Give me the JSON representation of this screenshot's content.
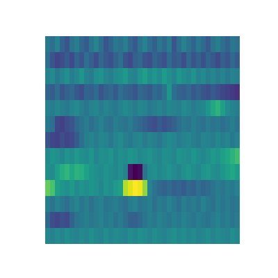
{
  "chart_data": {
    "type": "heatmap",
    "color": "viridis",
    "tick_labels": false,
    "cells": [
      [
        0.42,
        0.38,
        0.45,
        0.35,
        0.3,
        0.4,
        0.44,
        0.36,
        0.32,
        0.41,
        0.46,
        0.38,
        0.3,
        0.35,
        0.42,
        0.39,
        0.44,
        0.36,
        0.31,
        0.4,
        0.45,
        0.38,
        0.33,
        0.41,
        0.36,
        0.43,
        0.3,
        0.38,
        0.45,
        0.4,
        0.35,
        0.42,
        0.37,
        0.31,
        0.4,
        0.44,
        0.38,
        0.34,
        0.41,
        0.39
      ],
      [
        0.38,
        0.3,
        0.25,
        0.28,
        0.32,
        0.27,
        0.35,
        0.3,
        0.38,
        0.33,
        0.28,
        0.36,
        0.31,
        0.29,
        0.34,
        0.38,
        0.3,
        0.27,
        0.33,
        0.36,
        0.3,
        0.28,
        0.35,
        0.32,
        0.29,
        0.37,
        0.31,
        0.33,
        0.28,
        0.36,
        0.3,
        0.34,
        0.29,
        0.35,
        0.31,
        0.27,
        0.33,
        0.3,
        0.36,
        0.32
      ],
      [
        0.45,
        0.48,
        0.42,
        0.46,
        0.5,
        0.44,
        0.47,
        0.52,
        0.45,
        0.43,
        0.49,
        0.51,
        0.46,
        0.44,
        0.48,
        0.5,
        0.53,
        0.47,
        0.45,
        0.51,
        0.55,
        0.49,
        0.52,
        0.48,
        0.54,
        0.5,
        0.46,
        0.52,
        0.49,
        0.47,
        0.51,
        0.45,
        0.48,
        0.44,
        0.47,
        0.43,
        0.46,
        0.42,
        0.45,
        0.44
      ],
      [
        0.35,
        0.32,
        0.38,
        0.3,
        0.34,
        0.36,
        0.31,
        0.28,
        0.35,
        0.33,
        0.37,
        0.3,
        0.34,
        0.36,
        0.32,
        0.38,
        0.35,
        0.33,
        0.3,
        0.36,
        0.34,
        0.31,
        0.37,
        0.35,
        0.4,
        0.52,
        0.38,
        0.35,
        0.33,
        0.36,
        0.31,
        0.34,
        0.3,
        0.28,
        0.32,
        0.29,
        0.26,
        0.24,
        0.22,
        0.2
      ],
      [
        0.45,
        0.43,
        0.47,
        0.44,
        0.42,
        0.46,
        0.48,
        0.44,
        0.41,
        0.45,
        0.47,
        0.43,
        0.46,
        0.44,
        0.42,
        0.45,
        0.48,
        0.46,
        0.43,
        0.47,
        0.45,
        0.42,
        0.44,
        0.46,
        0.43,
        0.47,
        0.45,
        0.44,
        0.48,
        0.46,
        0.43,
        0.45,
        0.47,
        0.52,
        0.58,
        0.62,
        0.55,
        0.48,
        0.45,
        0.44
      ],
      [
        0.42,
        0.38,
        0.26,
        0.24,
        0.28,
        0.3,
        0.36,
        0.4,
        0.43,
        0.38,
        0.42,
        0.45,
        0.41,
        0.39,
        0.44,
        0.42,
        0.4,
        0.43,
        0.38,
        0.36,
        0.33,
        0.3,
        0.28,
        0.32,
        0.29,
        0.31,
        0.34,
        0.38,
        0.42,
        0.4,
        0.44,
        0.41,
        0.39,
        0.43,
        0.4,
        0.42,
        0.38,
        0.41,
        0.44,
        0.4
      ],
      [
        0.3,
        0.26,
        0.24,
        0.28,
        0.25,
        0.27,
        0.32,
        0.38,
        0.44,
        0.46,
        0.43,
        0.47,
        0.45,
        0.42,
        0.46,
        0.48,
        0.44,
        0.42,
        0.45,
        0.47,
        0.43,
        0.46,
        0.44,
        0.41,
        0.45,
        0.48,
        0.46,
        0.43,
        0.45,
        0.47,
        0.44,
        0.42,
        0.46,
        0.45,
        0.43,
        0.47,
        0.44,
        0.46,
        0.42,
        0.45
      ],
      [
        0.48,
        0.52,
        0.5,
        0.47,
        0.51,
        0.49,
        0.53,
        0.5,
        0.48,
        0.52,
        0.46,
        0.5,
        0.49,
        0.51,
        0.47,
        0.5,
        0.48,
        0.52,
        0.5,
        0.47,
        0.49,
        0.51,
        0.48,
        0.46,
        0.5,
        0.49,
        0.47,
        0.51,
        0.5,
        0.48,
        0.52,
        0.49,
        0.47,
        0.5,
        0.53,
        0.51,
        0.55,
        0.58,
        0.62,
        0.66
      ],
      [
        0.5,
        0.48,
        0.55,
        0.6,
        0.63,
        0.58,
        0.62,
        0.6,
        0.56,
        0.52,
        0.5,
        0.48,
        0.51,
        0.49,
        0.47,
        0.5,
        0.45,
        0.12,
        0.08,
        0.1,
        0.4,
        0.48,
        0.5,
        0.47,
        0.49,
        0.51,
        0.48,
        0.46,
        0.5,
        0.52,
        0.49,
        0.47,
        0.51,
        0.53,
        0.5,
        0.48,
        0.52,
        0.55,
        0.58,
        0.54
      ],
      [
        0.72,
        0.68,
        0.55,
        0.52,
        0.5,
        0.53,
        0.48,
        0.51,
        0.49,
        0.52,
        0.5,
        0.47,
        0.51,
        0.49,
        0.53,
        0.55,
        0.82,
        0.88,
        0.92,
        0.9,
        0.78,
        0.45,
        0.4,
        0.36,
        0.34,
        0.37,
        0.33,
        0.35,
        0.32,
        0.36,
        0.34,
        0.38,
        0.35,
        0.37,
        0.4,
        0.43,
        0.41,
        0.44,
        0.42,
        0.45
      ],
      [
        0.44,
        0.4,
        0.45,
        0.42,
        0.38,
        0.43,
        0.46,
        0.41,
        0.44,
        0.39,
        0.43,
        0.45,
        0.4,
        0.42,
        0.44,
        0.41,
        0.38,
        0.43,
        0.45,
        0.4,
        0.42,
        0.44,
        0.39,
        0.43,
        0.41,
        0.45,
        0.42,
        0.38,
        0.44,
        0.41,
        0.43,
        0.4,
        0.45,
        0.42,
        0.39,
        0.44,
        0.41,
        0.43,
        0.4,
        0.42
      ],
      [
        0.36,
        0.28,
        0.26,
        0.29,
        0.27,
        0.34,
        0.4,
        0.42,
        0.44,
        0.41,
        0.43,
        0.45,
        0.42,
        0.44,
        0.4,
        0.43,
        0.38,
        0.34,
        0.33,
        0.36,
        0.41,
        0.44,
        0.42,
        0.45,
        0.43,
        0.41,
        0.44,
        0.42,
        0.45,
        0.43,
        0.41,
        0.44,
        0.42,
        0.4,
        0.43,
        0.45,
        0.42,
        0.44,
        0.41,
        0.43
      ],
      [
        0.47,
        0.45,
        0.48,
        0.46,
        0.49,
        0.47,
        0.45,
        0.48,
        0.46,
        0.5,
        0.47,
        0.45,
        0.49,
        0.46,
        0.48,
        0.47,
        0.45,
        0.49,
        0.47,
        0.5,
        0.48,
        0.46,
        0.49,
        0.47,
        0.45,
        0.48,
        0.5,
        0.47,
        0.49,
        0.46,
        0.48,
        0.45,
        0.47,
        0.49,
        0.46,
        0.48,
        0.47,
        0.45,
        0.49,
        0.47
      ]
    ]
  }
}
